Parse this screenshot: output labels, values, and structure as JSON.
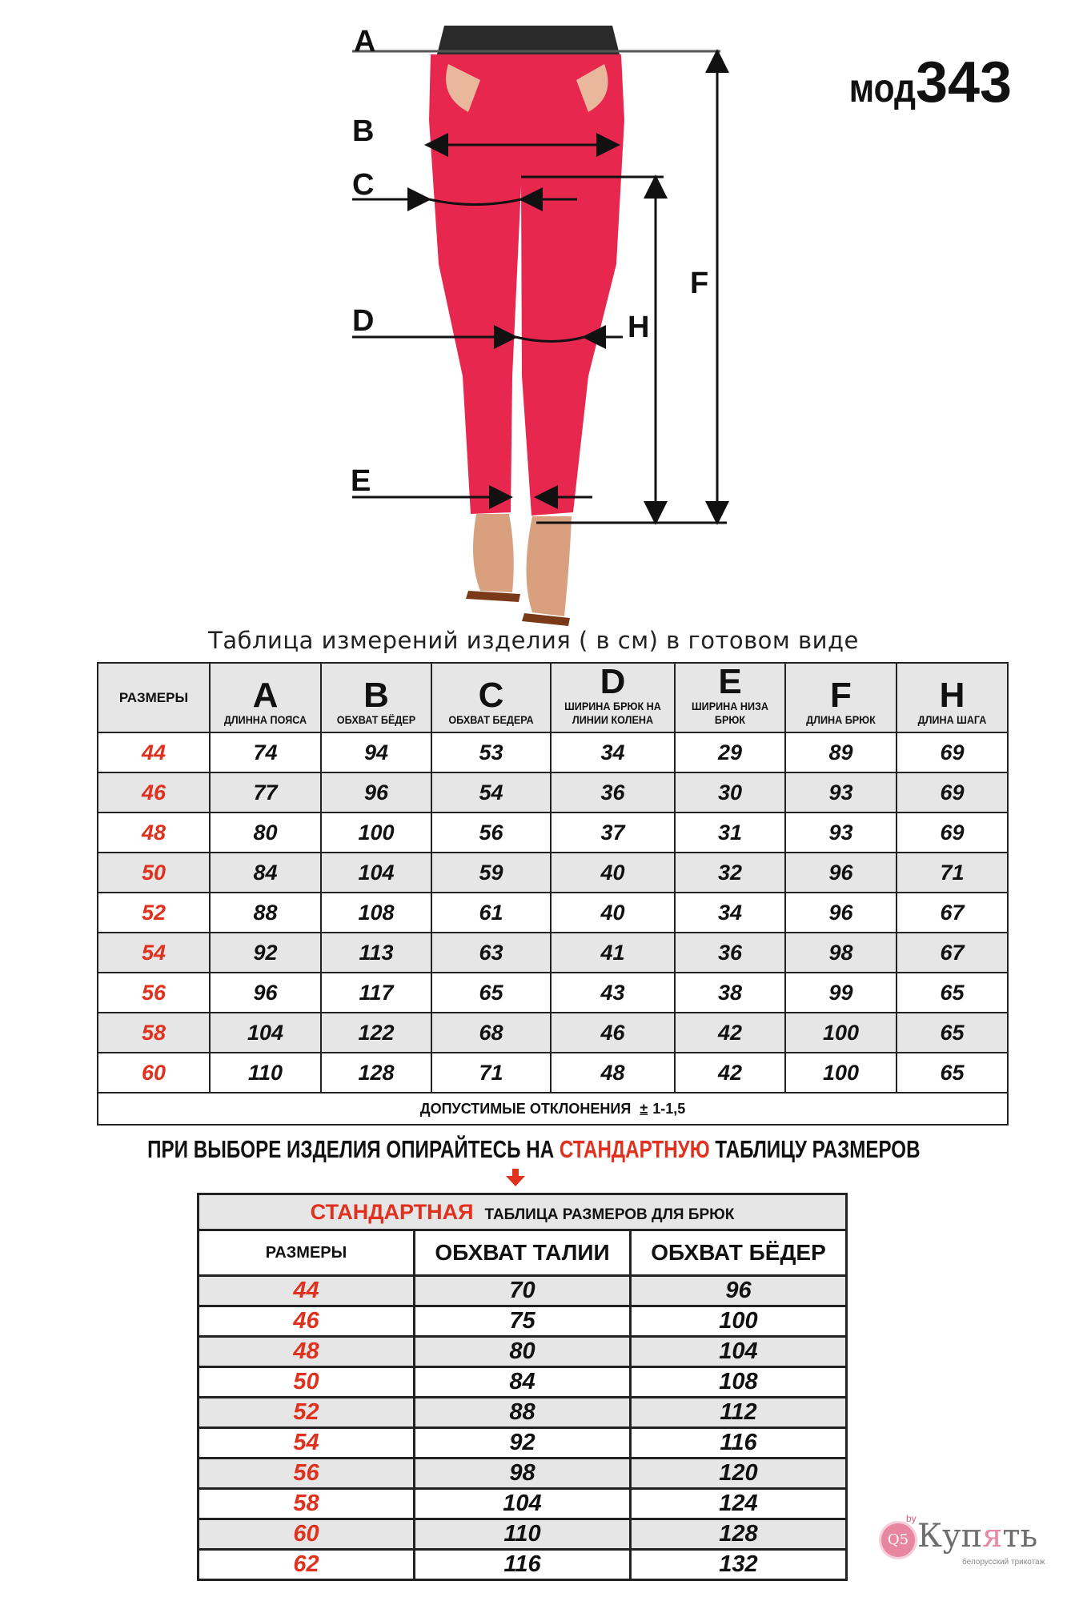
{
  "model": {
    "prefix": "мод",
    "number": "343"
  },
  "diagram": {
    "labels": {
      "A": "A",
      "B": "B",
      "C": "C",
      "D": "D",
      "E": "E",
      "F": "F",
      "H": "H"
    }
  },
  "caption": "Таблица  измерений изделия ( в см) в готовом виде",
  "main_table": {
    "sizes_header": "РАЗМЕРЫ",
    "columns": [
      {
        "letter": "A",
        "label": "ДЛИННА ПОЯСА"
      },
      {
        "letter": "B",
        "label": "ОБХВАТ БЁДЕР"
      },
      {
        "letter": "C",
        "label": "ОБХВАТ БЕДЕРА"
      },
      {
        "letter": "D",
        "label": "ШИРИНА БРЮК НА ЛИНИИ КОЛЕНА"
      },
      {
        "letter": "E",
        "label": "ШИРИНА НИЗА БРЮК"
      },
      {
        "letter": "F",
        "label": "ДЛИНА БРЮК"
      },
      {
        "letter": "H",
        "label": "ДЛИНА ШАГА"
      }
    ],
    "rows": [
      {
        "size": "44",
        "values": [
          "74",
          "94",
          "53",
          "34",
          "29",
          "89",
          "69"
        ]
      },
      {
        "size": "46",
        "values": [
          "77",
          "96",
          "54",
          "36",
          "30",
          "93",
          "69"
        ]
      },
      {
        "size": "48",
        "values": [
          "80",
          "100",
          "56",
          "37",
          "31",
          "93",
          "69"
        ]
      },
      {
        "size": "50",
        "values": [
          "84",
          "104",
          "59",
          "40",
          "32",
          "96",
          "71"
        ]
      },
      {
        "size": "52",
        "values": [
          "88",
          "108",
          "61",
          "40",
          "34",
          "96",
          "67"
        ]
      },
      {
        "size": "54",
        "values": [
          "92",
          "113",
          "63",
          "41",
          "36",
          "98",
          "67"
        ]
      },
      {
        "size": "56",
        "values": [
          "96",
          "117",
          "65",
          "43",
          "38",
          "99",
          "65"
        ]
      },
      {
        "size": "58",
        "values": [
          "104",
          "122",
          "68",
          "46",
          "42",
          "100",
          "65"
        ]
      },
      {
        "size": "60",
        "values": [
          "110",
          "128",
          "71",
          "48",
          "42",
          "100",
          "65"
        ]
      }
    ],
    "footer": {
      "label": "ДОПУСТИМЫЕ ОТКЛОНЕНИЯ",
      "sign": "±",
      "value": "1-1,5"
    }
  },
  "notice": {
    "before": "ПРИ ВЫБОРЕ ИЗДЕЛИЯ ОПИРАЙТЕСЬ НА ",
    "highlight": "СТАНДАРТНУЮ",
    "after": " ТАБЛИЦУ РАЗМЕРОВ"
  },
  "standard_table": {
    "title_highlight": "СТАНДАРТНАЯ",
    "title_rest": "ТАБЛИЦА РАЗМЕРОВ ДЛЯ БРЮК",
    "headers": [
      "РАЗМЕРЫ",
      "ОБХВАТ ТАЛИИ",
      "ОБХВАТ БЁДЕР"
    ],
    "rows": [
      {
        "size": "44",
        "waist": "70",
        "hips": "96"
      },
      {
        "size": "46",
        "waist": "75",
        "hips": "100"
      },
      {
        "size": "48",
        "waist": "80",
        "hips": "104"
      },
      {
        "size": "50",
        "waist": "84",
        "hips": "108"
      },
      {
        "size": "52",
        "waist": "88",
        "hips": "112"
      },
      {
        "size": "54",
        "waist": "92",
        "hips": "116"
      },
      {
        "size": "56",
        "waist": "98",
        "hips": "120"
      },
      {
        "size": "58",
        "waist": "104",
        "hips": "124"
      },
      {
        "size": "60",
        "waist": "110",
        "hips": "128"
      },
      {
        "size": "62",
        "waist": "116",
        "hips": "132"
      }
    ]
  },
  "logo": {
    "badge": "Q5",
    "suffix": "by",
    "word_start": "Куп",
    "word_accent": "я",
    "word_end": "ть",
    "tagline": "белорусский трикотаж"
  },
  "colors": {
    "accent_red": "#e0301e",
    "trousers": "#e8274f",
    "row_gray": "#e6e6e6",
    "logo_pink": "#e8859f"
  }
}
